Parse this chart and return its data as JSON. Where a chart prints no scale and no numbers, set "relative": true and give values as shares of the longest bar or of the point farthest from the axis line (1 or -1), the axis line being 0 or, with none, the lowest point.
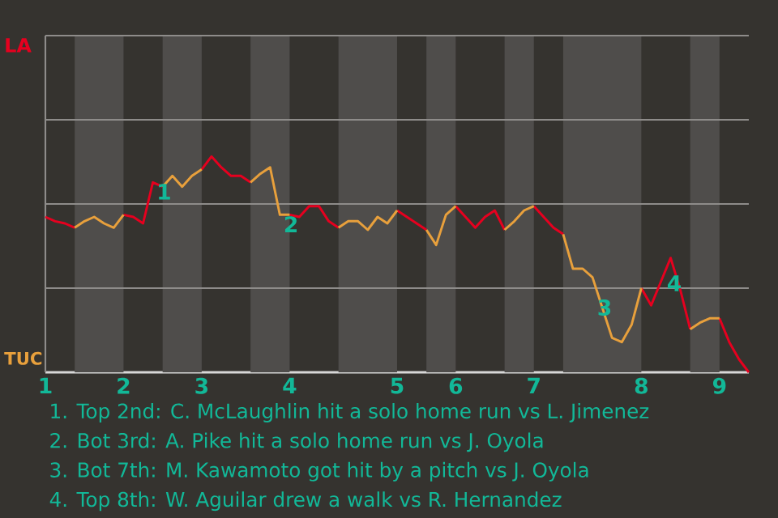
{
  "chart_data": {
    "type": "line",
    "relative": true,
    "categories": [
      "1",
      null,
      null,
      null,
      null,
      null,
      null,
      null,
      "2",
      null,
      null,
      null,
      null,
      null,
      null,
      null,
      "3",
      null,
      null,
      null,
      null,
      null,
      null,
      null,
      null,
      "4",
      null,
      null,
      null,
      null,
      null,
      null,
      null,
      null,
      null,
      null,
      "5",
      null,
      null,
      null,
      null,
      null,
      "6",
      null,
      null,
      null,
      null,
      null,
      null,
      null,
      "7",
      null,
      null,
      null,
      null,
      null,
      null,
      null,
      null,
      null,
      null,
      "8",
      null,
      null,
      null,
      null,
      null,
      null,
      null,
      "9",
      null,
      null,
      null
    ],
    "series": [
      {
        "color": "#e6001f",
        "values": [
          0.72,
          0.7,
          0.69,
          0.67,
          null,
          null,
          null,
          null,
          0.73,
          0.72,
          0.69,
          0.88,
          0.86,
          null,
          null,
          null,
          0.94,
          1,
          0.95,
          0.91,
          0.91,
          0.88,
          null,
          null,
          null,
          0.73,
          0.72,
          0.77,
          0.77,
          0.7,
          0.67,
          null,
          null,
          null,
          null,
          null,
          0.75,
          0.72,
          0.69,
          0.66,
          null,
          null,
          0.77,
          0.72,
          0.67,
          0.72,
          0.75,
          0.66,
          null,
          null,
          0.77,
          0.72,
          0.67,
          0.64,
          null,
          null,
          null,
          null,
          null,
          null,
          null,
          0.39,
          0.31,
          0.42,
          0.53,
          0.38,
          0.2,
          null,
          null,
          0.25,
          0.14,
          0.06,
          0
        ]
      },
      {
        "color": "#e8a03c",
        "values": [
          null,
          null,
          null,
          0.67,
          0.7,
          0.72,
          0.69,
          0.67,
          0.73,
          null,
          null,
          null,
          0.86,
          0.91,
          0.86,
          0.91,
          0.94,
          null,
          null,
          null,
          null,
          0.88,
          0.92,
          0.95,
          0.73,
          0.73,
          null,
          null,
          null,
          null,
          0.67,
          0.7,
          0.7,
          0.66,
          0.72,
          0.69,
          0.75,
          null,
          null,
          0.66,
          0.59,
          0.73,
          0.77,
          null,
          null,
          null,
          null,
          0.66,
          0.7,
          0.75,
          0.77,
          null,
          null,
          0.64,
          0.48,
          0.48,
          0.44,
          0.3,
          0.16,
          0.14,
          0.22,
          0.39,
          null,
          null,
          null,
          null,
          0.2,
          0.23,
          0.25,
          0.25,
          null,
          null,
          null
        ]
      }
    ],
    "marker": "none",
    "line_style": "solid",
    "ref_lines": [
      {
        "axis": "y",
        "value": 0.39,
        "color": "#8e8c8a"
      },
      {
        "axis": "y",
        "value": 0.78,
        "color": "#8e8c8a"
      },
      {
        "axis": "y",
        "value": 1.17,
        "color": "#8e8c8a"
      },
      {
        "axis": "y",
        "value": 1.56,
        "color": "#8e8c8a"
      }
    ],
    "annotations": [
      "LA",
      "TUC",
      {
        "text": "1",
        "y": 0.88
      },
      {
        "text": "2",
        "y": 0.73
      },
      "3",
      "4",
      "1. Top 2nd: C. McLaughlin hit a solo home run vs L. Jimenez",
      "2. Bot 3rd: A. Pike hit a solo home run vs J. Oyola",
      "3. Bot 7th: M. Kawamoto got hit by a pitch vs J. Oyola",
      "4. Top 8th: W. Aguilar drew a walk vs R. Hernandez"
    ]
  }
}
